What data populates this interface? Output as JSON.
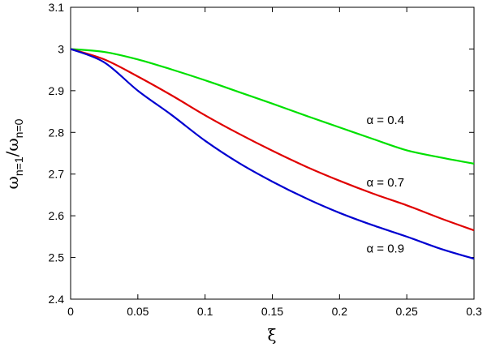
{
  "chart_data": {
    "type": "line",
    "title": "",
    "xlabel": "ξ",
    "ylabel": {
      "base": "ω",
      "num_sub": "n=1",
      "sep": "/",
      "den_sub": "n=0"
    },
    "xlim": [
      0,
      0.3
    ],
    "ylim": [
      2.4,
      3.1
    ],
    "xticks": [
      "0",
      "0.05",
      "0.1",
      "0.15",
      "0.2",
      "0.25",
      "0.3"
    ],
    "yticks": [
      "2.4",
      "2.5",
      "2.6",
      "2.7",
      "2.8",
      "2.9",
      "3",
      "3.1"
    ],
    "grid": false,
    "legend": "none",
    "series": [
      {
        "name": "α = 0.4",
        "color": "#00e000",
        "x": [
          0,
          0.025,
          0.05,
          0.075,
          0.1,
          0.125,
          0.15,
          0.175,
          0.2,
          0.225,
          0.25,
          0.275,
          0.3
        ],
        "y": [
          3.0,
          2.993,
          2.975,
          2.951,
          2.925,
          2.897,
          2.869,
          2.84,
          2.812,
          2.784,
          2.757,
          2.74,
          2.725
        ],
        "label_at": [
          0.22,
          2.82
        ]
      },
      {
        "name": "α = 0.7",
        "color": "#e00000",
        "x": [
          0,
          0.025,
          0.05,
          0.075,
          0.1,
          0.125,
          0.15,
          0.175,
          0.2,
          0.225,
          0.25,
          0.275,
          0.3
        ],
        "y": [
          3.0,
          2.975,
          2.934,
          2.889,
          2.841,
          2.797,
          2.756,
          2.718,
          2.684,
          2.653,
          2.625,
          2.594,
          2.565
        ],
        "label_at": [
          0.22,
          2.67
        ]
      },
      {
        "name": "α = 0.9",
        "color": "#0000d0",
        "x": [
          0,
          0.025,
          0.05,
          0.075,
          0.1,
          0.125,
          0.15,
          0.175,
          0.2,
          0.225,
          0.25,
          0.275,
          0.3
        ],
        "y": [
          3.0,
          2.968,
          2.9,
          2.842,
          2.78,
          2.727,
          2.682,
          2.642,
          2.607,
          2.577,
          2.55,
          2.521,
          2.497
        ],
        "label_at": [
          0.22,
          2.512
        ]
      }
    ]
  }
}
